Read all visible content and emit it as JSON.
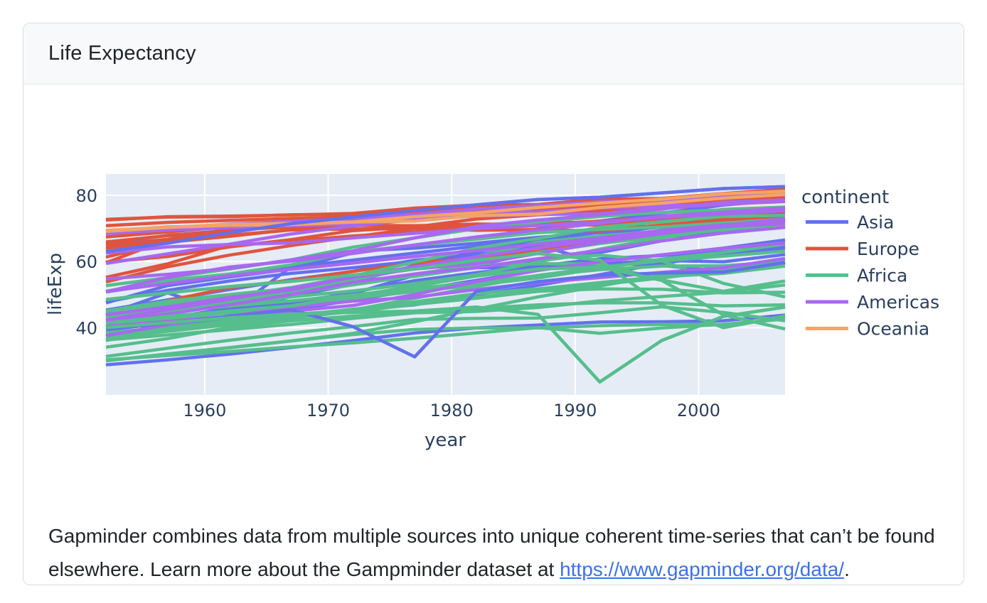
{
  "card": {
    "title": "Life Expectancy"
  },
  "description": {
    "text_before_link": "Gapminder combines data from multiple sources into unique coherent time-series that can’t be found elsewhere. Learn more about the Gampminder dataset at ",
    "link_text": "https://www.gapminder.org/data/",
    "text_after_link": "."
  },
  "chart_data": {
    "type": "line",
    "title": "",
    "xlabel": "year",
    "ylabel": "lifeExp",
    "legend_title": "continent",
    "legend_position": "right",
    "grid": true,
    "plot_bg": "#e5ecf6",
    "grid_color": "#ffffff",
    "axis_text_color": "#2a3f5f",
    "xlim": [
      1952,
      2007
    ],
    "ylim": [
      19.7,
      86.4
    ],
    "xticks": [
      1960,
      1970,
      1980,
      1990,
      2000
    ],
    "yticks": [
      40,
      60,
      80
    ],
    "x": [
      1952,
      1957,
      1962,
      1967,
      1972,
      1977,
      1982,
      1987,
      1992,
      1997,
      2002,
      2007
    ],
    "continents": [
      {
        "name": "Asia",
        "color": "#6370ee",
        "lines": [
          [
            28.8,
            30.3,
            32.0,
            34.0,
            36.1,
            38.4,
            39.9,
            40.8,
            41.7,
            41.8,
            42.1,
            43.8
          ],
          [
            63.0,
            65.5,
            68.7,
            71.4,
            73.4,
            75.4,
            77.1,
            78.7,
            79.4,
            80.7,
            82.0,
            82.6
          ],
          [
            39.4,
            41.4,
            43.4,
            45.4,
            40.3,
            31.2,
            51.0,
            53.9,
            55.8,
            56.5,
            56.8,
            59.7
          ],
          [
            44.0,
            50.5,
            44.5,
            58.4,
            63.1,
            64.0,
            65.5,
            67.3,
            68.7,
            70.4,
            72.0,
            73.0
          ],
          [
            37.4,
            40.2,
            43.6,
            47.2,
            50.7,
            54.2,
            56.6,
            58.6,
            60.8,
            61.8,
            62.9,
            64.7
          ],
          [
            47.5,
            52.7,
            55.3,
            57.7,
            62.6,
            64.8,
            67.1,
            69.8,
            72.2,
            74.6,
            77.0,
            78.6
          ],
          [
            65.4,
            67.9,
            69.4,
            70.8,
            71.6,
            73.1,
            74.5,
            75.6,
            76.9,
            78.3,
            79.7,
            80.7
          ],
          [
            45.3,
            48.4,
            51.5,
            54.5,
            57.0,
            60.4,
            62.0,
            65.0,
            59.5,
            58.8,
            57.0,
            59.5
          ],
          [
            37.5,
            39.9,
            42.5,
            46.0,
            49.2,
            52.7,
            56.2,
            60.1,
            62.7,
            66.2,
            68.6,
            70.6
          ],
          [
            40.4,
            42.9,
            45.4,
            47.8,
            50.3,
            55.8,
            58.8,
            62.8,
            67.7,
            70.7,
            73.0,
            74.2
          ],
          [
            39.9,
            42.9,
            45.9,
            49.9,
            53.9,
            58.7,
            63.0,
            66.3,
            68.8,
            70.5,
            71.6,
            72.8
          ],
          [
            50.8,
            53.6,
            56.1,
            58.3,
            60.4,
            62.5,
            64.6,
            66.9,
            67.3,
            67.5,
            68.6,
            70.6
          ],
          [
            36.2,
            39.2,
            42.3,
            45.3,
            48.3,
            51.3,
            54.3,
            57.3,
            60.0,
            62.0,
            64.0,
            66.5
          ],
          [
            47.8,
            51.3,
            54.1,
            56.4,
            58.1,
            60.1,
            62.1,
            64.2,
            66.5,
            68.6,
            70.3,
            71.7
          ],
          [
            37.5,
            39.3,
            41.2,
            43.5,
            45.3,
            46.9,
            50.0,
            52.8,
            56.0,
            59.4,
            62.0,
            64.1
          ],
          [
            36.3,
            41.9,
            45.1,
            49.4,
            53.1,
            56.1,
            58.1,
            58.3,
            59.3,
            60.3,
            59.9,
            62.1
          ]
        ]
      },
      {
        "name": "Europe",
        "color": "#e0543e",
        "lines": [
          [
            72.7,
            73.4,
            73.5,
            74.1,
            74.3,
            75.4,
            75.8,
            75.9,
            77.0,
            78.3,
            79.0,
            80.2
          ],
          [
            72.5,
            73.5,
            73.7,
            74.0,
            74.5,
            76.1,
            77.0,
            77.2,
            78.8,
            79.0,
            80.5,
            81.8
          ],
          [
            43.6,
            48.1,
            52.1,
            54.3,
            57.0,
            59.5,
            61.0,
            63.1,
            66.1,
            68.8,
            70.8,
            71.8
          ],
          [
            64.9,
            66.7,
            69.7,
            71.4,
            73.1,
            74.4,
            76.3,
            76.9,
            77.6,
            78.8,
            79.8,
            80.9
          ],
          [
            59.8,
            61.5,
            64.4,
            66.6,
            69.3,
            70.4,
            72.8,
            74.1,
            74.9,
            76.0,
            77.3,
            78.1
          ],
          [
            55.2,
            59.3,
            64.8,
            66.2,
            67.7,
            68.9,
            70.4,
            72.0,
            71.6,
            73.0,
            75.7,
            76.4
          ],
          [
            53.8,
            58.4,
            61.9,
            64.8,
            67.4,
            69.9,
            70.7,
            71.1,
            72.2,
            73.2,
            74.1,
            74.9
          ],
          [
            67.4,
            68.9,
            70.5,
            71.6,
            72.4,
            73.8,
            74.9,
            76.3,
            77.5,
            78.6,
            79.6,
            80.7
          ],
          [
            64.0,
            66.4,
            67.9,
            69.5,
            69.8,
            69.9,
            69.4,
            69.6,
            69.2,
            71.0,
            72.6,
            73.3
          ],
          [
            61.3,
            65.8,
            67.6,
            69.6,
            70.9,
            70.7,
            71.3,
            71.0,
            71.0,
            72.8,
            74.7,
            75.6
          ],
          [
            69.2,
            70.4,
            70.8,
            71.4,
            72.0,
            72.8,
            74.0,
            75.0,
            76.4,
            77.2,
            78.5,
            79.4
          ],
          [
            65.9,
            67.8,
            69.2,
            71.1,
            72.2,
            73.5,
            75.0,
            76.4,
            77.4,
            78.8,
            80.2,
            80.5
          ],
          [
            70.8,
            71.8,
            72.4,
            73.0,
            73.5,
            74.7,
            74.6,
            74.8,
            75.3,
            76.1,
            77.2,
            78.3
          ],
          [
            59.6,
            66.6,
            69.5,
            70.4,
            70.9,
            70.8,
            71.1,
            71.6,
            71.2,
            70.3,
            72.1,
            73.0
          ]
        ]
      },
      {
        "name": "Africa",
        "color": "#56be8c",
        "lines": [
          [
            40.0,
            41.5,
            43.0,
            44.1,
            44.6,
            45.0,
            46.2,
            44.0,
            23.6,
            36.1,
            43.4,
            46.2
          ],
          [
            48.5,
            50.5,
            52.4,
            54.0,
            55.9,
            57.7,
            60.4,
            62.4,
            60.4,
            46.8,
            40.0,
            43.5
          ],
          [
            41.4,
            43.4,
            45.0,
            46.6,
            49.6,
            52.5,
            55.6,
            57.7,
            58.3,
            54.3,
            43.9,
            39.6
          ],
          [
            52.7,
            55.1,
            57.7,
            60.5,
            64.3,
            67.1,
            69.9,
            71.9,
            73.6,
            74.8,
            75.6,
            76.4
          ],
          [
            51.0,
            54.3,
            56.2,
            59.0,
            62.9,
            64.9,
            66.7,
            68.7,
            69.7,
            70.4,
            71.6,
            72.8
          ],
          [
            44.6,
            47.1,
            49.6,
            52.1,
            55.6,
            59.8,
            64.0,
            66.9,
            70.3,
            72.0,
            73.6,
            73.9
          ],
          [
            41.9,
            44.4,
            47.0,
            49.3,
            51.1,
            53.3,
            56.0,
            59.8,
            63.7,
            67.2,
            69.8,
            71.3
          ],
          [
            30.0,
            32.1,
            33.9,
            36.0,
            38.3,
            41.8,
            45.6,
            49.3,
            52.6,
            55.9,
            58.4,
            59.4
          ],
          [
            30.3,
            31.6,
            32.8,
            34.2,
            35.4,
            36.8,
            38.4,
            40.0,
            38.3,
            39.9,
            41.0,
            42.6
          ],
          [
            31.3,
            33.8,
            36.2,
            38.4,
            40.3,
            42.5,
            42.8,
            42.9,
            44.5,
            46.3,
            44.6,
            42.1
          ],
          [
            30.0,
            32.0,
            34.0,
            36.0,
            37.9,
            39.5,
            39.9,
            39.9,
            40.6,
            41.0,
            41.0,
            42.7
          ],
          [
            36.3,
            37.8,
            39.4,
            41.0,
            42.8,
            44.5,
            45.8,
            46.9,
            47.5,
            47.5,
            46.6,
            46.9
          ],
          [
            42.3,
            44.7,
            47.9,
            50.7,
            53.6,
            56.2,
            58.8,
            59.3,
            59.3,
            54.4,
            51.0,
            54.1
          ],
          [
            43.1,
            44.8,
            46.5,
            48.1,
            49.9,
            51.8,
            53.7,
            55.7,
            57.5,
            58.6,
            58.7,
            60.0
          ],
          [
            45.0,
            48.0,
            50.0,
            51.9,
            53.7,
            55.5,
            58.2,
            60.8,
            61.9,
            60.2,
            53.4,
            49.3
          ],
          [
            43.1,
            45.7,
            48.3,
            51.4,
            54.5,
            58.0,
            61.4,
            65.8,
            67.7,
            69.2,
            71.0,
            72.3
          ],
          [
            34.1,
            36.7,
            40.1,
            42.1,
            43.5,
            44.5,
            44.9,
            46.1,
            48.1,
            49.4,
            50.7,
            52.9
          ],
          [
            36.7,
            38.9,
            40.9,
            42.9,
            44.9,
            47.0,
            48.9,
            51.0,
            53.0,
            55.0,
            57.3,
            59.4
          ],
          [
            42.9,
            45.4,
            47.9,
            50.3,
            52.9,
            55.7,
            59.7,
            62.7,
            65.4,
            67.6,
            69.6,
            71.2
          ],
          [
            37.3,
            39.3,
            41.5,
            43.5,
            45.3,
            48.9,
            52.4,
            55.8,
            58.2,
            60.2,
            61.6,
            63.1
          ],
          [
            40.7,
            42.5,
            44.5,
            46.5,
            48.9,
            50.9,
            52.9,
            55.0,
            57.9,
            60.7,
            62.7,
            65.2
          ],
          [
            38.6,
            40.0,
            42.1,
            44.1,
            45.1,
            47.8,
            50.3,
            51.7,
            53.6,
            55.4,
            56.4,
            58.6
          ],
          [
            38.1,
            39.9,
            41.7,
            43.6,
            45.6,
            47.4,
            49.2,
            51.0,
            51.7,
            51.6,
            50.5,
            50.7
          ]
        ]
      },
      {
        "name": "Americas",
        "color": "#a868f0",
        "lines": [
          [
            68.8,
            70.0,
            71.3,
            72.1,
            72.9,
            74.2,
            75.8,
            76.9,
            78.0,
            78.6,
            79.8,
            80.7
          ],
          [
            68.4,
            69.5,
            70.2,
            70.8,
            71.3,
            73.4,
            74.7,
            75.0,
            76.1,
            76.8,
            77.3,
            78.2
          ],
          [
            37.6,
            40.9,
            43.4,
            46.2,
            48.0,
            49.2,
            51.5,
            53.6,
            55.1,
            56.7,
            58.1,
            60.9
          ],
          [
            40.4,
            41.9,
            43.4,
            45.0,
            46.7,
            50.0,
            53.9,
            57.3,
            59.9,
            62.0,
            63.9,
            65.6
          ],
          [
            42.0,
            44.1,
            46.9,
            50.0,
            53.7,
            56.2,
            58.1,
            60.8,
            63.4,
            66.2,
            68.6,
            70.3
          ],
          [
            50.8,
            55.2,
            58.3,
            60.1,
            62.4,
            65.0,
            67.4,
            69.5,
            71.5,
            73.7,
            74.9,
            76.2
          ],
          [
            50.9,
            53.3,
            55.7,
            57.6,
            59.5,
            61.5,
            63.3,
            65.2,
            67.1,
            69.4,
            71.0,
            72.4
          ],
          [
            62.5,
            64.4,
            65.1,
            65.6,
            67.1,
            68.5,
            69.9,
            70.8,
            71.9,
            73.3,
            74.3,
            75.3
          ],
          [
            43.9,
            46.3,
            49.1,
            51.4,
            55.4,
            58.4,
            61.4,
            64.1,
            66.5,
            68.4,
            70.5,
            71.4
          ],
          [
            54.7,
            56.1,
            57.9,
            60.5,
            63.2,
            67.1,
            70.6,
            72.5,
            74.1,
            75.8,
            77.9,
            78.6
          ],
          [
            59.4,
            62.3,
            65.2,
            68.3,
            70.7,
            72.6,
            73.7,
            74.2,
            74.4,
            76.2,
            77.2,
            78.3
          ],
          [
            42.3,
            45.4,
            48.6,
            51.9,
            55.2,
            57.7,
            59.3,
            62.4,
            65.8,
            68.4,
            70.8,
            72.9
          ]
        ]
      },
      {
        "name": "Oceania",
        "color": "#f5a465",
        "lines": [
          [
            69.1,
            70.3,
            70.9,
            71.1,
            71.9,
            73.5,
            74.7,
            76.3,
            77.6,
            78.8,
            80.4,
            81.2
          ],
          [
            69.4,
            70.3,
            71.2,
            71.5,
            71.9,
            72.2,
            73.8,
            74.3,
            76.3,
            77.6,
            79.1,
            80.2
          ]
        ]
      }
    ]
  }
}
